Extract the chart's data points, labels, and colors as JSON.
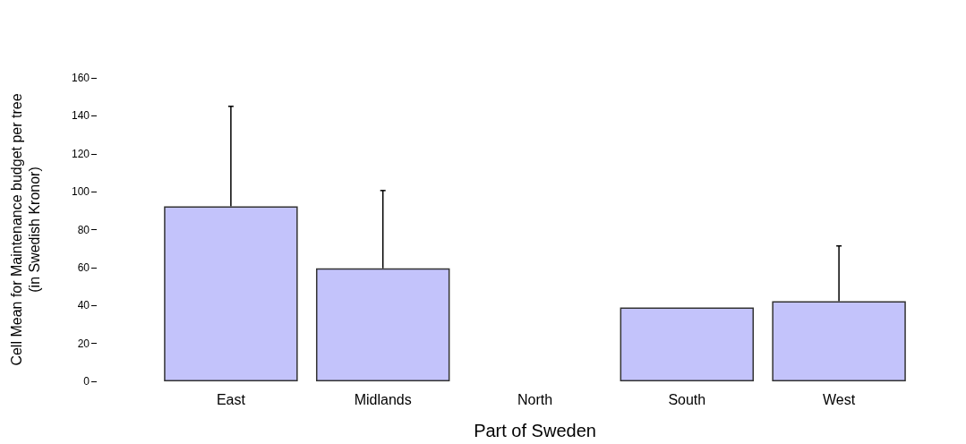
{
  "chart_data": {
    "type": "bar",
    "xlabel": "Part of Sweden",
    "ylabel": "Cell Mean for Maintenance budget per tree\n(in Swedish Kronor)",
    "categories": [
      "East",
      "Midlands",
      "North",
      "South",
      "West"
    ],
    "values": [
      92.3,
      59.6,
      null,
      38.9,
      42.2
    ],
    "errors": [
      [
        92.3,
        145.0
      ],
      [
        59.6,
        100.6
      ],
      null,
      null,
      [
        42.2,
        71.4
      ]
    ],
    "color": "#c3c3fb",
    "ylim": [
      0,
      160
    ],
    "yticks": [
      0,
      20,
      40,
      60,
      80,
      100,
      120,
      140,
      160
    ],
    "grid": false
  }
}
